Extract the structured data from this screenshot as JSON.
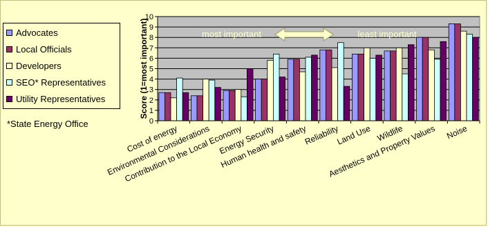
{
  "chart_data": {
    "type": "bar",
    "ylabel": "Score (1=most important)",
    "ylim": [
      0,
      10
    ],
    "yticks": [
      "0",
      "1",
      "2",
      "3",
      "4",
      "5",
      "6",
      "7",
      "8",
      "9",
      "10"
    ],
    "grid": true,
    "legend_position": "left",
    "categories": [
      "Cost of energy",
      "Environmental Considerations",
      "Contribution to the Local Economy",
      "Energy Security",
      "Human health and safety",
      "Reliability",
      "Land Use",
      "Wildlife",
      "Aesthetics and Property Values",
      "Noise"
    ],
    "series": [
      {
        "name": "Advocates",
        "color": "#9999ff",
        "values": [
          2.7,
          2.4,
          2.9,
          4.0,
          5.9,
          6.8,
          6.4,
          6.7,
          8.0,
          9.3
        ]
      },
      {
        "name": "Local Officials",
        "color": "#993366",
        "values": [
          2.7,
          2.4,
          2.9,
          4.0,
          5.9,
          6.8,
          6.4,
          6.7,
          8.0,
          9.3
        ]
      },
      {
        "name": "Developers",
        "color": "#ffffcc",
        "values": [
          2.2,
          4.0,
          3.0,
          5.8,
          4.7,
          5.1,
          7.0,
          7.0,
          6.8,
          8.6
        ]
      },
      {
        "name": "SEO* Representatives",
        "color": "#ccffff",
        "values": [
          4.1,
          3.9,
          2.3,
          6.4,
          6.1,
          7.5,
          6.0,
          4.5,
          5.9,
          8.3
        ]
      },
      {
        "name": "Utility Representatives",
        "color": "#660066",
        "values": [
          2.7,
          3.2,
          5.0,
          4.2,
          6.3,
          3.3,
          6.3,
          7.3,
          7.6,
          8.0
        ]
      }
    ],
    "annotations": {
      "left": "most important",
      "right": "least important"
    }
  },
  "footnote": "*State Energy Office",
  "colors": {
    "page_bg": "#ffffcc",
    "plot_bg": "#c0c0c0",
    "annotation_text": "#ffffcc"
  }
}
